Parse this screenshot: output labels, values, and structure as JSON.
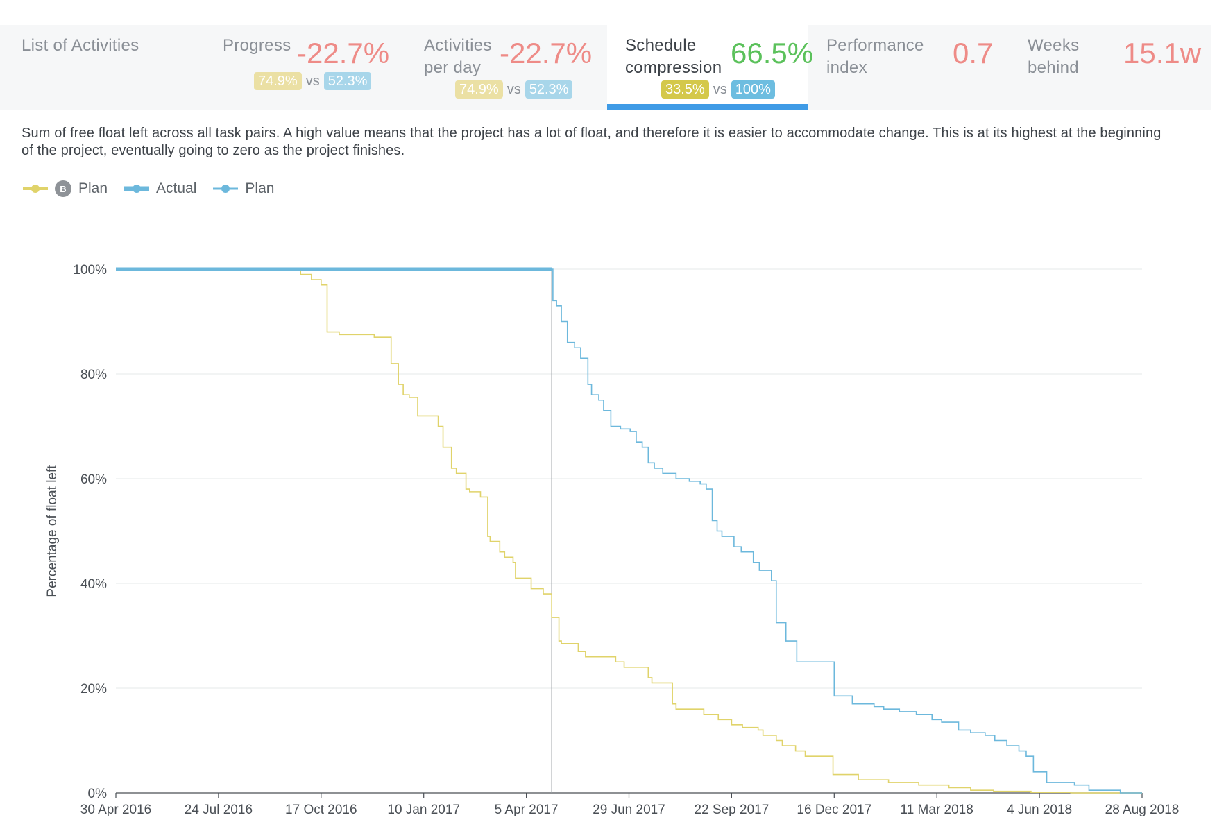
{
  "tabs": [
    {
      "label": "List of Activities"
    },
    {
      "label": "Progress",
      "value": "-22.7%",
      "chip_a": "74.9%",
      "vs": "vs",
      "chip_b": "52.3%"
    },
    {
      "label_line1": "Activities",
      "label_line2": "per day",
      "value": "-22.7%",
      "chip_a": "74.9%",
      "vs": "vs",
      "chip_b": "52.3%"
    },
    {
      "label_line1": "Schedule",
      "label_line2": "compression",
      "value": "66.5%",
      "chip_a": "33.5%",
      "vs": "vs",
      "chip_b": "100%"
    },
    {
      "label_line1": "Performance",
      "label_line2": "index",
      "value": "0.7"
    },
    {
      "label_line1": "Weeks",
      "label_line2": "behind",
      "value": "15.1w"
    }
  ],
  "description": "Sum of free float left across all task pairs. A high value means that the project has a lot of float, and therefore it is easier to accommodate change. This is at its highest at the beginning of the project, eventually going to zero as the project finishes.",
  "colors": {
    "baseline_plan": "#e0d36a",
    "actual": "#6cb8dc",
    "plan": "#6cb8dc",
    "bad_value": "#ee8b87",
    "good_value": "#5bc15b",
    "active_tab": "#3f9be6"
  },
  "legend": [
    {
      "badge": "B",
      "label": "Plan",
      "icon": "baseline-plan-line-icon"
    },
    {
      "label": "Actual",
      "icon": "actual-line-icon"
    },
    {
      "label": "Plan",
      "icon": "plan-line-icon"
    }
  ],
  "chart_data": {
    "type": "line",
    "ylabel": "Percentage of float left",
    "xlabel": "",
    "yticks": [
      "0%",
      "20%",
      "40%",
      "60%",
      "80%",
      "100%"
    ],
    "ylim": [
      0,
      100
    ],
    "xlim": [
      "2016-04-30",
      "2018-08-28"
    ],
    "xticks": [
      "30 Apr 2016",
      "24 Jul 2016",
      "17 Oct 2016",
      "10 Jan 2017",
      "5 Apr 2017",
      "29 Jun 2017",
      "22 Sep 2017",
      "16 Dec 2017",
      "11 Mar 2018",
      "4 Jun 2018",
      "28 Aug 2018"
    ],
    "grid": "horizontal",
    "legend_position": "top-left",
    "today_marker": "2017-04-26",
    "series": [
      {
        "name": "Plan",
        "badge": "B",
        "style": "thin",
        "x": [
          "2016-04-30",
          "2016-09-30",
          "2016-10-09",
          "2016-10-17",
          "2016-10-22",
          "2016-10-23",
          "2016-11-01",
          "2016-11-14",
          "2016-11-30",
          "2016-12-14",
          "2016-12-20",
          "2016-12-24",
          "2016-12-29",
          "2017-01-05",
          "2017-01-10",
          "2017-01-22",
          "2017-01-26",
          "2017-02-02",
          "2017-02-06",
          "2017-02-14",
          "2017-02-17",
          "2017-02-26",
          "2017-03-04",
          "2017-03-06",
          "2017-03-14",
          "2017-03-18",
          "2017-03-25",
          "2017-03-27",
          "2017-04-09",
          "2017-04-19",
          "2017-04-21",
          "2017-04-26",
          "2017-05-02",
          "2017-05-04",
          "2017-05-18",
          "2017-05-24",
          "2017-06-18",
          "2017-06-25",
          "2017-07-15",
          "2017-07-18",
          "2017-08-04",
          "2017-08-07",
          "2017-08-30",
          "2017-09-09",
          "2017-09-11",
          "2017-09-22",
          "2017-09-26",
          "2017-10-01",
          "2017-10-08",
          "2017-10-14",
          "2017-10-18",
          "2017-10-29",
          "2017-11-03",
          "2017-11-14",
          "2017-11-22",
          "2017-12-15",
          "2018-01-05",
          "2018-01-30",
          "2018-02-24",
          "2018-03-21",
          "2018-04-08",
          "2018-04-27",
          "2018-05-28",
          "2018-06-30",
          "2018-08-28"
        ],
        "y": [
          100,
          99,
          98,
          97,
          88,
          88,
          87.5,
          87.5,
          87,
          82,
          78,
          76,
          75.5,
          72,
          72,
          70,
          66,
          62,
          61,
          58,
          57.5,
          56.5,
          49,
          48,
          46,
          45,
          44,
          41,
          39,
          38,
          38,
          33.5,
          29,
          28.5,
          27,
          26,
          25,
          24,
          22,
          21,
          17,
          16,
          15,
          15,
          14,
          13,
          13,
          12.5,
          12.5,
          12,
          11,
          10,
          9,
          8,
          7,
          3.5,
          2.5,
          2,
          1.5,
          1,
          0.5,
          0.3,
          0.1,
          0,
          0
        ]
      },
      {
        "name": "Actual",
        "style": "thick",
        "x": [
          "2016-04-30",
          "2017-04-26"
        ],
        "y": [
          100,
          100
        ]
      },
      {
        "name": "Plan",
        "style": "thin",
        "x": [
          "2017-04-26",
          "2017-04-27",
          "2017-04-30",
          "2017-05-04",
          "2017-05-09",
          "2017-05-15",
          "2017-05-20",
          "2017-05-26",
          "2017-05-29",
          "2017-06-04",
          "2017-06-08",
          "2017-06-14",
          "2017-06-22",
          "2017-06-30",
          "2017-07-05",
          "2017-07-10",
          "2017-07-15",
          "2017-07-20",
          "2017-07-27",
          "2017-08-07",
          "2017-08-18",
          "2017-08-27",
          "2017-09-01",
          "2017-09-06",
          "2017-09-10",
          "2017-09-14",
          "2017-09-24",
          "2017-09-30",
          "2017-10-10",
          "2017-10-15",
          "2017-10-25",
          "2017-10-29",
          "2017-11-06",
          "2017-11-15",
          "2017-12-16",
          "2017-12-31",
          "2018-01-18",
          "2018-01-26",
          "2018-02-08",
          "2018-02-22",
          "2018-03-07",
          "2018-03-15",
          "2018-03-29",
          "2018-04-08",
          "2018-04-20",
          "2018-04-28",
          "2018-05-08",
          "2018-05-18",
          "2018-05-24",
          "2018-05-30",
          "2018-06-10",
          "2018-07-03",
          "2018-07-15",
          "2018-08-10",
          "2018-08-28"
        ],
        "y": [
          100,
          94,
          93,
          90,
          86,
          85,
          83,
          78,
          76,
          75,
          73,
          70,
          69.5,
          69,
          67,
          66,
          63,
          62,
          61,
          60,
          59.5,
          59,
          58,
          52,
          50,
          49,
          47,
          46,
          44,
          42.5,
          40.5,
          32.5,
          29,
          25,
          18.5,
          17,
          16.5,
          16,
          15.5,
          15,
          14,
          13.5,
          12,
          11.5,
          11,
          10,
          9,
          8,
          7,
          4,
          2,
          1.5,
          0.5,
          0,
          0
        ]
      }
    ]
  }
}
